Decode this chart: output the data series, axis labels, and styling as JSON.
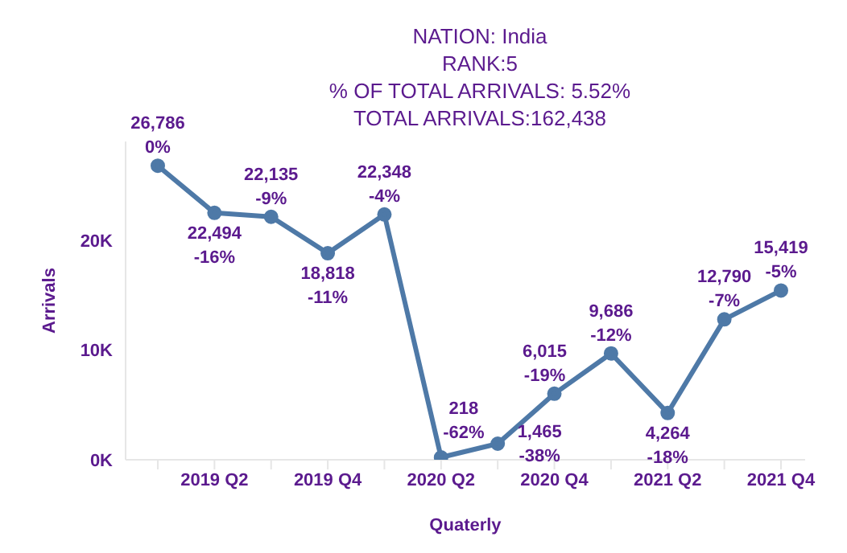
{
  "chart_data": {
    "type": "line",
    "title": "NATION:  India",
    "subtitle": "RANK:5\n% OF TOTAL ARRIVALS: 5.52%\nTOTAL ARRIVALS:162,438",
    "xlabel": "Quaterly",
    "ylabel": "Arrivals",
    "categories": [
      null,
      "2019 Q2",
      null,
      "2019 Q4",
      null,
      "2020 Q2",
      null,
      "2020 Q4",
      null,
      "2021 Q2",
      null,
      "2021 Q4"
    ],
    "series": [
      {
        "color": "#4e79a7",
        "values": [
          26786,
          22494,
          22135,
          18818,
          22348,
          218,
          1465,
          6015,
          9686,
          4264,
          12790,
          15419
        ],
        "value_labels": [
          "26,786\n0%",
          "22,494\n-16%",
          "22,135\n-9%",
          "18,818\n-11%",
          "22,348\n-4%",
          "218\n-62%",
          "1,465\n-38%",
          "6,015\n-19%",
          "9,686\n-12%",
          "4,264\n-18%",
          "12,790\n-7%",
          "15,419\n-5%"
        ]
      }
    ],
    "ylim": [
      0,
      29000
    ],
    "yticks": [
      {
        "value": 0,
        "label": "0K"
      },
      {
        "value": 10000,
        "label": "10K"
      },
      {
        "value": 20000,
        "label": "20K"
      }
    ],
    "grid": false,
    "legend": false,
    "marker": "circle",
    "line_style": "solid"
  }
}
